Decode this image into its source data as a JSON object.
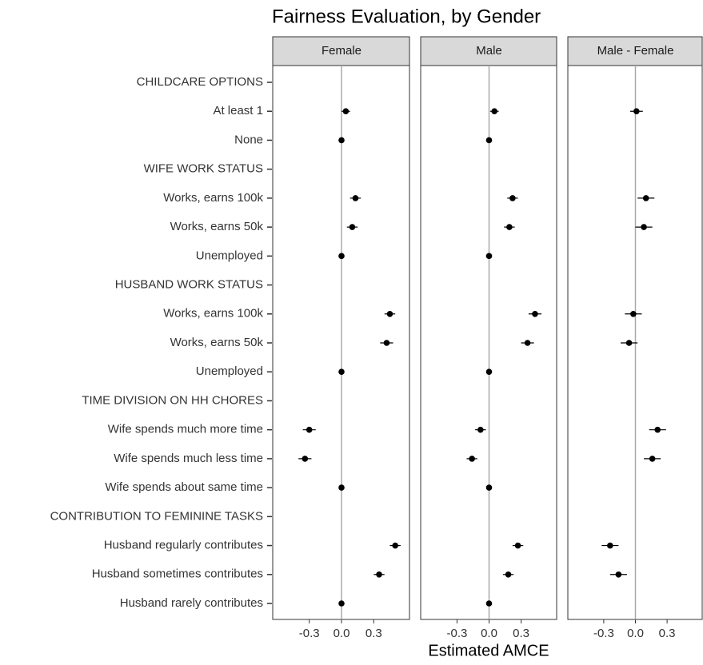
{
  "chart_data": {
    "type": "dotplot",
    "title": "Fairness Evaluation, by Gender",
    "xlabel": "Estimated AMCE",
    "categories": [
      "CHILDCARE OPTIONS",
      "At least 1",
      "None",
      "WIFE WORK STATUS",
      "Works, earns 100k",
      "Works, earns 50k",
      "Unemployed",
      "HUSBAND WORK STATUS",
      "Works, earns 100k",
      "Works, earns 50k",
      "Unemployed",
      "TIME DIVISION ON HH CHORES",
      "Wife spends much more time",
      "Wife spends much less time",
      "Wife spends about same time",
      "CONTRIBUTION TO FEMININE TASKS",
      "Husband regularly contributes",
      "Husband sometimes contributes",
      "Husband rarely contributes"
    ],
    "xlim": [
      -0.64,
      0.64
    ],
    "xticks": [
      -0.3,
      {
        "value": 0,
        "label": "0.0"
      },
      0.3
    ],
    "color": "#000000",
    "panels": [
      {
        "name": "Female",
        "values": [
          null,
          0.04,
          0,
          null,
          0.13,
          0.1,
          0,
          null,
          0.45,
          0.42,
          0,
          null,
          -0.3,
          -0.34,
          0,
          null,
          0.5,
          0.35,
          0
        ],
        "errors": [
          null,
          0.04,
          0,
          null,
          0.05,
          0.05,
          0,
          null,
          0.05,
          0.06,
          0,
          null,
          0.06,
          0.06,
          0,
          null,
          0.05,
          0.05,
          0
        ]
      },
      {
        "name": "Male",
        "values": [
          null,
          0.05,
          0,
          null,
          0.22,
          0.19,
          0,
          null,
          0.43,
          0.36,
          0,
          null,
          -0.08,
          -0.16,
          0,
          null,
          0.27,
          0.18,
          0
        ],
        "errors": [
          null,
          0.04,
          0,
          null,
          0.05,
          0.05,
          0,
          null,
          0.06,
          0.06,
          0,
          null,
          0.05,
          0.05,
          0,
          null,
          0.05,
          0.05,
          0
        ]
      },
      {
        "name": "Male - Female",
        "values": [
          null,
          0.01,
          null,
          null,
          0.1,
          0.08,
          null,
          null,
          -0.02,
          -0.06,
          null,
          null,
          0.21,
          0.16,
          null,
          null,
          -0.24,
          -0.16,
          null
        ],
        "errors": [
          null,
          0.06,
          null,
          null,
          0.08,
          0.08,
          null,
          null,
          0.08,
          0.08,
          null,
          null,
          0.08,
          0.08,
          null,
          null,
          0.08,
          0.08,
          null
        ]
      }
    ]
  }
}
